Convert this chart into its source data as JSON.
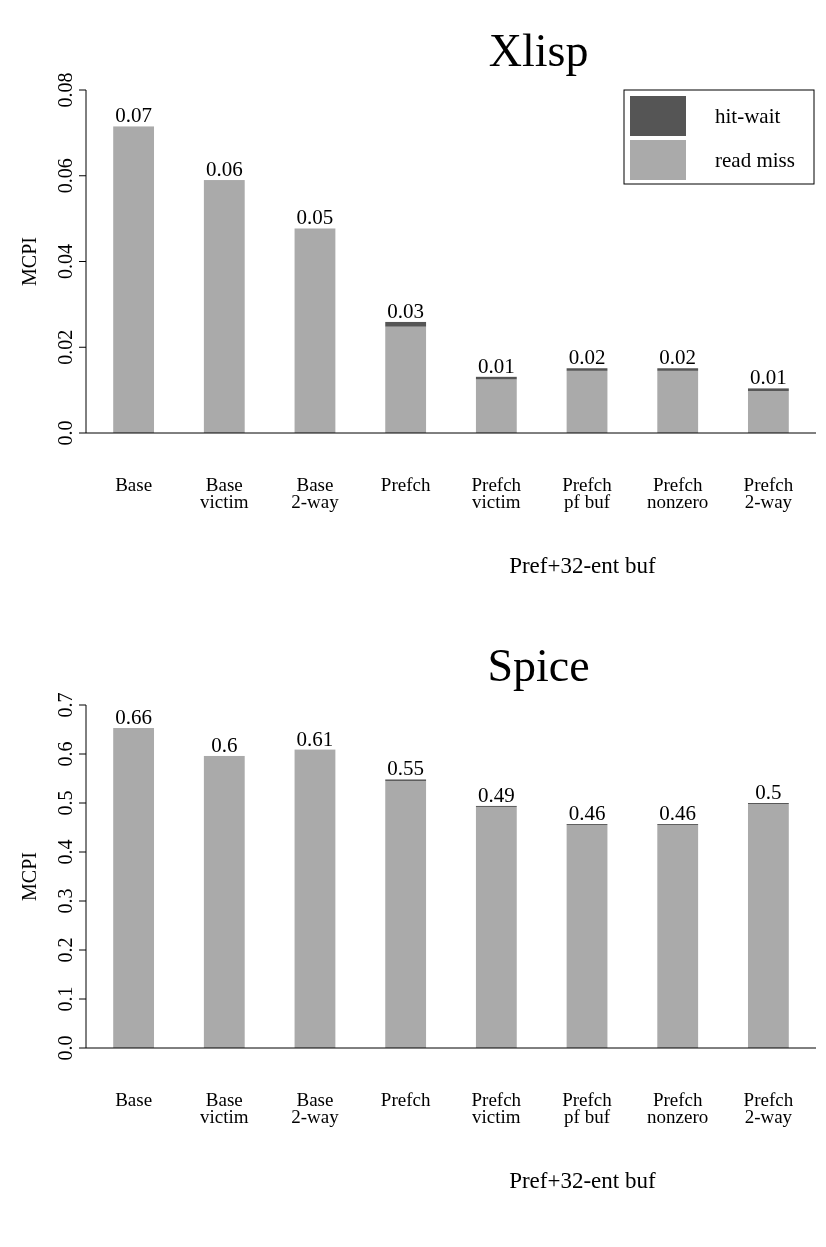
{
  "chart_data": [
    {
      "type": "bar",
      "title": "Xlisp",
      "ylabel": "MCPI",
      "xlabel": "Pref+32-ent buf",
      "stacked": true,
      "categories": [
        "Base",
        "Base\nvictim",
        "Base\n2-way",
        "Prefch",
        "Prefch\nvictim",
        "Prefch\npf buf",
        "Prefch\nnonzero",
        "Prefch\n2-way"
      ],
      "series": [
        {
          "name": "read miss",
          "color": "#aaaaaa",
          "values": [
            0.0715,
            0.059,
            0.0477,
            0.0248,
            0.0125,
            0.0145,
            0.0145,
            0.0098
          ]
        },
        {
          "name": "hit-wait",
          "color": "#555555",
          "values": [
            0,
            0,
            0,
            0.0011,
            0.0006,
            0.0006,
            0.0006,
            0.0006
          ]
        }
      ],
      "totals": [
        "0.07",
        "0.06",
        "0.05",
        "0.03",
        "0.01",
        "0.02",
        "0.02",
        "0.01"
      ],
      "ylim": [
        0,
        0.08
      ],
      "yticks": [
        {
          "value": 0,
          "label": "0.0"
        },
        0.02,
        0.04,
        0.06,
        0.08
      ],
      "legend": "top right"
    },
    {
      "type": "bar",
      "title": "Spice",
      "ylabel": "MCPI",
      "xlabel": "Pref+32-ent buf",
      "stacked": true,
      "categories": [
        "Base",
        "Base\nvictim",
        "Base\n2-way",
        "Prefch",
        "Prefch\nvictim",
        "Prefch\npf buf",
        "Prefch\nnonzero",
        "Prefch\n2-way"
      ],
      "series": [
        {
          "color": "#aaaaaa",
          "values": [
            0.653,
            0.596,
            0.609,
            0.545,
            0.492,
            0.455,
            0.455,
            0.498
          ]
        },
        {
          "color": "#555555",
          "values": [
            0,
            0,
            0,
            0.003,
            0.002,
            0.002,
            0.002,
            0.002
          ]
        }
      ],
      "totals": [
        "0.66",
        "0.6",
        "0.61",
        "0.55",
        "0.49",
        "0.46",
        "0.46",
        "0.5"
      ],
      "ylim": [
        0,
        0.7
      ],
      "yticks": [
        {
          "value": 0,
          "label": "0.0"
        },
        0.1,
        0.2,
        0.3,
        0.4,
        0.5,
        0.6,
        0.7
      ],
      "legend": false
    }
  ]
}
